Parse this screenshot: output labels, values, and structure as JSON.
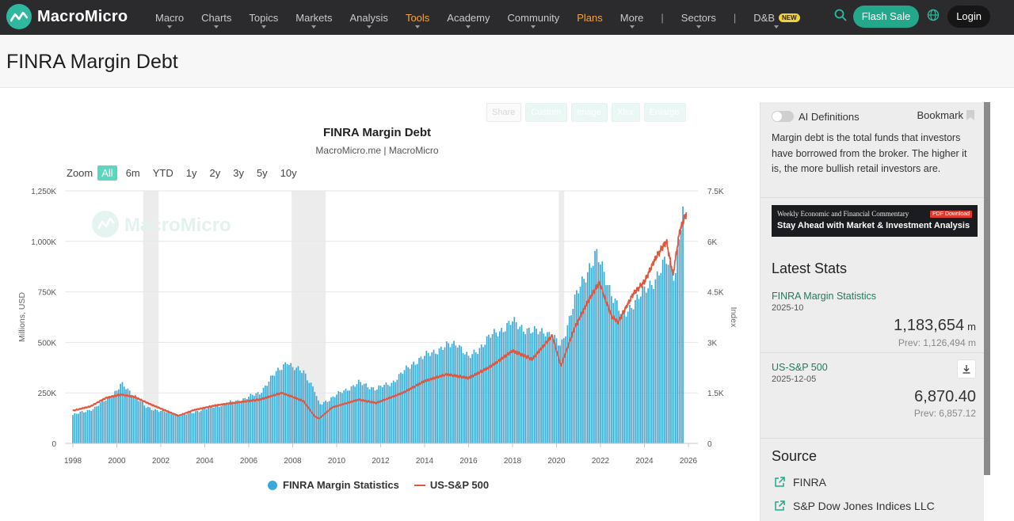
{
  "nav": {
    "brand": "MacroMicro",
    "items": [
      {
        "label": "Macro",
        "caret": true,
        "orange": false
      },
      {
        "label": "Charts",
        "caret": true,
        "orange": false
      },
      {
        "label": "Topics",
        "caret": true,
        "orange": false
      },
      {
        "label": "Markets",
        "caret": true,
        "orange": false
      },
      {
        "label": "Analysis",
        "caret": true,
        "orange": false
      },
      {
        "label": "Tools",
        "caret": true,
        "orange": true
      },
      {
        "label": "Academy",
        "caret": true,
        "orange": false
      },
      {
        "label": "Community",
        "caret": true,
        "orange": false
      },
      {
        "label": "Plans",
        "caret": false,
        "orange": true
      },
      {
        "label": "More",
        "caret": true,
        "orange": false
      },
      {
        "label": "|",
        "sep": true
      },
      {
        "label": "Sectors",
        "caret": true,
        "orange": false
      },
      {
        "label": "|",
        "sep": true
      },
      {
        "label": "D&B",
        "caret": true,
        "orange": false,
        "badge": "NEW"
      }
    ],
    "flash_sale": "Flash Sale",
    "login": "Login"
  },
  "page": {
    "title": "FINRA Margin Debt"
  },
  "toolbar": [
    "Share",
    "Custom",
    "Image",
    "Xlsx",
    "Enlarge"
  ],
  "chart": {
    "title": "FINRA Margin Debt",
    "subtitle": "MacroMicro.me | MacroMicro",
    "zoom_label": "Zoom",
    "zoom_options": [
      "All",
      "6m",
      "YTD",
      "1y",
      "2y",
      "3y",
      "5y",
      "10y"
    ],
    "zoom_active": "All",
    "watermark": "MacroMicro",
    "legend": [
      "FINRA Margin Statistics",
      "US-S&P 500"
    ]
  },
  "chart_data": {
    "type": "bar",
    "title": "FINRA Margin Debt",
    "subtitle": "MacroMicro.me | MacroMicro",
    "ylabel": "Millions, USD",
    "y2label": "Index",
    "ylim": [
      0,
      1250000
    ],
    "y2lim": [
      0,
      7500
    ],
    "yticks": [
      "0",
      "250K",
      "500K",
      "750K",
      "1,000K",
      "1,250K"
    ],
    "y2ticks": [
      "0",
      "1.5K",
      "3K",
      "4.5K",
      "6K",
      "7.5K"
    ],
    "xticks": [
      "1998",
      "2000",
      "2002",
      "2004",
      "2006",
      "2008",
      "2010",
      "2012",
      "2014",
      "2016",
      "2018",
      "2020",
      "2022",
      "2024",
      "2026"
    ],
    "xlim": [
      1998.0,
      2026.0
    ],
    "recessions": [
      [
        2001.2,
        2001.9
      ],
      [
        2007.95,
        2009.5
      ],
      [
        2020.1,
        2020.35
      ]
    ],
    "series": [
      {
        "name": "FINRA Margin Statistics",
        "type": "bar",
        "color": "#3aa9d6",
        "points": [
          [
            1998.0,
            140000
          ],
          [
            1999.0,
            175000
          ],
          [
            2000.0,
            260000
          ],
          [
            2000.2,
            293000
          ],
          [
            2000.8,
            240000
          ],
          [
            2001.3,
            180000
          ],
          [
            2002.0,
            160000
          ],
          [
            2003.0,
            140000
          ],
          [
            2003.8,
            165000
          ],
          [
            2004.5,
            185000
          ],
          [
            2005.5,
            210000
          ],
          [
            2006.5,
            250000
          ],
          [
            2007.0,
            320000
          ],
          [
            2007.5,
            380000
          ],
          [
            2007.75,
            410000
          ],
          [
            2008.0,
            370000
          ],
          [
            2008.5,
            360000
          ],
          [
            2009.0,
            260000
          ],
          [
            2009.2,
            190000
          ],
          [
            2010.0,
            240000
          ],
          [
            2011.0,
            300000
          ],
          [
            2011.8,
            270000
          ],
          [
            2012.5,
            300000
          ],
          [
            2013.5,
            400000
          ],
          [
            2014.5,
            460000
          ],
          [
            2015.5,
            500000
          ],
          [
            2016.0,
            420000
          ],
          [
            2017.0,
            530000
          ],
          [
            2018.0,
            600000
          ],
          [
            2018.9,
            550000
          ],
          [
            2019.5,
            560000
          ],
          [
            2020.2,
            480000
          ],
          [
            2020.8,
            700000
          ],
          [
            2021.5,
            880000
          ],
          [
            2021.8,
            936000
          ],
          [
            2022.5,
            750000
          ],
          [
            2023.0,
            620000
          ],
          [
            2023.5,
            700000
          ],
          [
            2024.0,
            750000
          ],
          [
            2024.5,
            820000
          ],
          [
            2025.0,
            900000
          ],
          [
            2025.4,
            840000
          ],
          [
            2025.6,
            1050000
          ],
          [
            2025.83,
            1183654
          ]
        ]
      },
      {
        "name": "US-S&P 500",
        "type": "line",
        "axis": "right",
        "color": "#e2583e",
        "points": [
          [
            1998.0,
            970
          ],
          [
            1998.8,
            1100
          ],
          [
            1999.5,
            1350
          ],
          [
            2000.2,
            1450
          ],
          [
            2000.8,
            1380
          ],
          [
            2001.5,
            1170
          ],
          [
            2002.5,
            900
          ],
          [
            2002.8,
            820
          ],
          [
            2003.5,
            990
          ],
          [
            2004.5,
            1130
          ],
          [
            2005.5,
            1220
          ],
          [
            2006.5,
            1300
          ],
          [
            2007.5,
            1500
          ],
          [
            2008.0,
            1380
          ],
          [
            2008.5,
            1250
          ],
          [
            2009.0,
            800
          ],
          [
            2009.2,
            735
          ],
          [
            2009.8,
            1070
          ],
          [
            2011.0,
            1300
          ],
          [
            2011.8,
            1200
          ],
          [
            2013.0,
            1500
          ],
          [
            2014.0,
            1850
          ],
          [
            2015.0,
            2050
          ],
          [
            2016.0,
            1940
          ],
          [
            2017.0,
            2280
          ],
          [
            2018.0,
            2750
          ],
          [
            2018.9,
            2500
          ],
          [
            2019.8,
            3200
          ],
          [
            2020.2,
            2300
          ],
          [
            2020.8,
            3400
          ],
          [
            2021.5,
            4300
          ],
          [
            2021.95,
            4770
          ],
          [
            2022.5,
            3780
          ],
          [
            2022.8,
            3600
          ],
          [
            2023.5,
            4450
          ],
          [
            2024.0,
            4800
          ],
          [
            2024.5,
            5500
          ],
          [
            2025.0,
            6000
          ],
          [
            2025.3,
            5000
          ],
          [
            2025.6,
            6300
          ],
          [
            2025.92,
            6870.4
          ]
        ]
      }
    ]
  },
  "panel": {
    "ai_definitions": "AI Definitions",
    "bookmark": "Bookmark",
    "description": "Margin debt is the total funds that investors have borrowed from the broker. The higher it is, the more bullish retail investors are.",
    "banner_top": "Weekly Economic and Financial Commentary",
    "banner_pdf": "PDF Download",
    "banner_bottom": "Stay Ahead with Market & Investment Analysis",
    "latest_stats_title": "Latest Stats",
    "stats": [
      {
        "name": "FINRA Margin Statistics",
        "date": "2025-10",
        "value": "1,183,654",
        "unit": "m",
        "prev_label": "Prev:",
        "prev": "1,126,494",
        "prev_unit": "m"
      },
      {
        "name": "US-S&P 500",
        "date": "2025-12-05",
        "value": "6,870.40",
        "unit": "",
        "prev_label": "Prev:",
        "prev": "6,857.12",
        "prev_unit": ""
      }
    ],
    "source_title": "Source",
    "sources": [
      "FINRA",
      "S&P Dow Jones Indices LLC"
    ]
  }
}
